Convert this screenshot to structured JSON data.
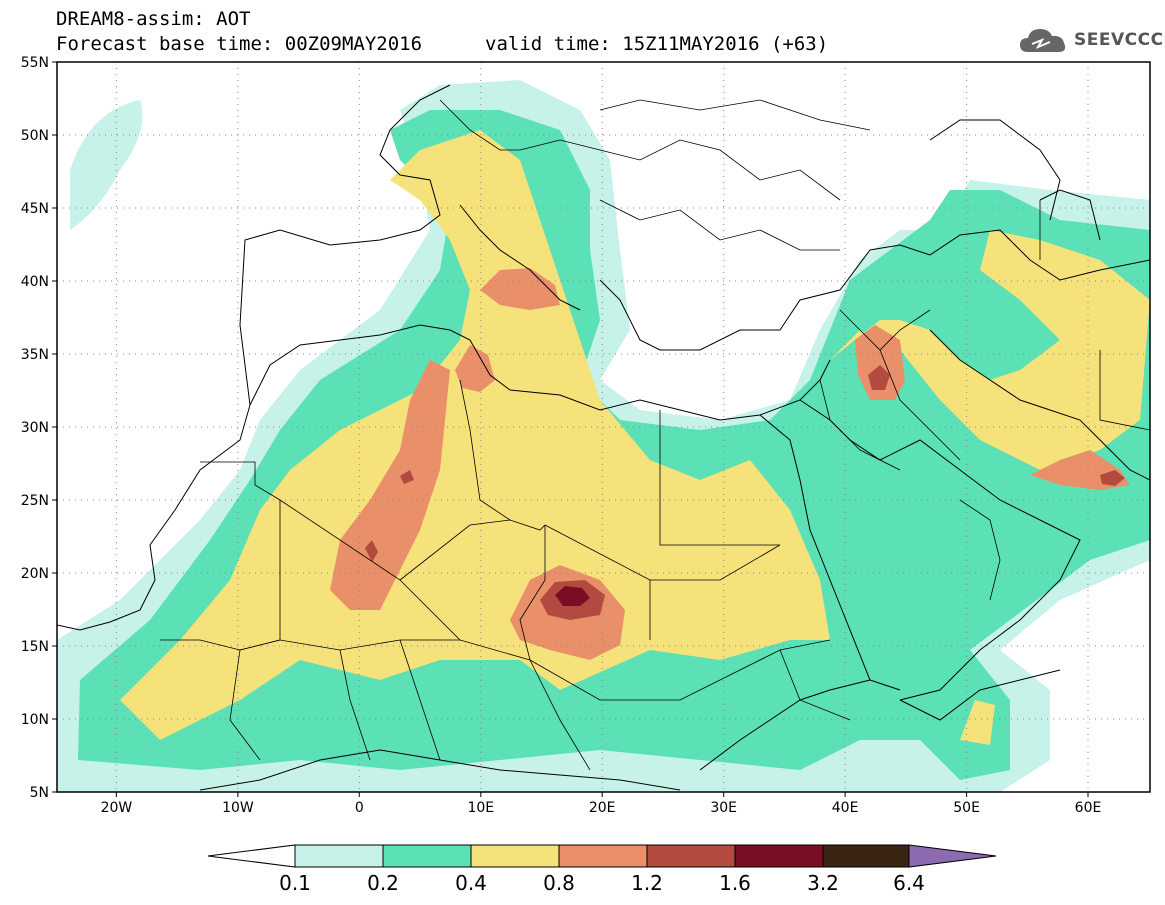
{
  "header": {
    "title": "DREAM8-assim: AOT",
    "base_time": "Forecast base time: 00Z09MAY2016",
    "valid_time": "valid time: 15Z11MAY2016 (+63)",
    "logo_text": "SEEVCCC",
    "logo_icon": "cloud-icon"
  },
  "map": {
    "region": "North Africa, Europe, Middle East",
    "lat_labels": [
      "55N",
      "50N",
      "45N",
      "40N",
      "35N",
      "30N",
      "25N",
      "20N",
      "15N",
      "10N",
      "5N"
    ],
    "lon_labels": [
      "20W",
      "10W",
      "0",
      "10E",
      "20E",
      "30E",
      "40E",
      "50E",
      "60E"
    ],
    "lon_range": [
      -25,
      65
    ],
    "lat_range": [
      5,
      55
    ],
    "grid": "dotted"
  },
  "colorbar": {
    "labels": [
      "0.1",
      "0.2",
      "0.4",
      "0.8",
      "1.2",
      "1.6",
      "3.2",
      "6.4"
    ],
    "colors": [
      "#ffffff",
      "#c6f2ea",
      "#5ce0b6",
      "#f5e27b",
      "#e9906a",
      "#b24a3f",
      "#7a0e24",
      "#3a2414",
      "#8c6bb1"
    ]
  },
  "chart_data": {
    "type": "heatmap",
    "title": "DREAM8-assim: AOT",
    "variable": "AOT",
    "levels": [
      0.1,
      0.2,
      0.4,
      0.8,
      1.2,
      1.6,
      3.2,
      6.4
    ],
    "level_colors": [
      "#c6f2ea",
      "#5ce0b6",
      "#f5e27b",
      "#e9906a",
      "#b24a3f",
      "#7a0e24",
      "#3a2414",
      "#8c6bb1"
    ],
    "xlim": [
      -25,
      65
    ],
    "ylim": [
      5,
      55
    ],
    "xticks": [
      "20W",
      "10W",
      "0",
      "10E",
      "20E",
      "30E",
      "40E",
      "50E",
      "60E"
    ],
    "yticks": [
      "55N",
      "50N",
      "45N",
      "40N",
      "35N",
      "30N",
      "25N",
      "20N",
      "15N",
      "10N",
      "5N"
    ],
    "maxima": [
      {
        "lon": 17.5,
        "lat": 18.5,
        "value": 1.6
      },
      {
        "lon": 1.5,
        "lat": 21.5,
        "value": 1.2
      },
      {
        "lon": 43,
        "lat": 33.5,
        "value": 1.2
      },
      {
        "lon": 58,
        "lat": 26.5,
        "value": 1.2
      }
    ]
  }
}
